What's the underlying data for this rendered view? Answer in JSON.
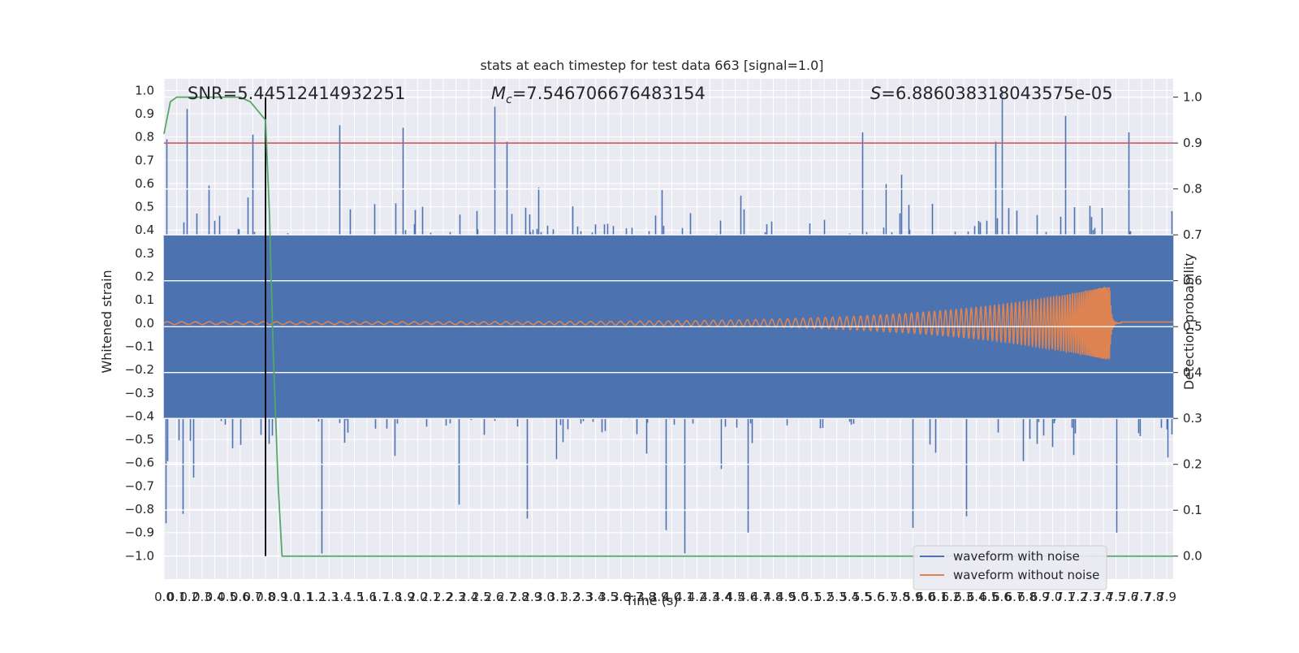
{
  "chart_data": {
    "type": "line",
    "title": "stats at each timestep for test data 663 [signal=1.0]",
    "xlabel": "Time (s)",
    "ylabel_left": "Whitened strain",
    "ylabel_right": "Detection probability",
    "xlim": [
      0.0,
      7.95
    ],
    "ylim_left": [
      -1.1,
      1.05
    ],
    "ylim_right": [
      -0.05,
      1.04
    ],
    "x_tick_step": 0.1,
    "y_left_ticks": [
      -1.0,
      -0.9,
      -0.8,
      -0.7,
      -0.6,
      -0.5,
      -0.4,
      -0.3,
      -0.2,
      -0.1,
      0.0,
      0.1,
      0.2,
      0.3,
      0.4,
      0.5,
      0.6,
      0.7,
      0.8,
      0.9,
      1.0
    ],
    "y_right_ticks": [
      0.0,
      0.1,
      0.2,
      0.3,
      0.4,
      0.5,
      0.6,
      0.7,
      0.8,
      0.9,
      1.0
    ],
    "grid": true,
    "legend_position": "lower-right",
    "annotations": {
      "snr": "SNR=5.44512414932251",
      "mc_symbol": "M",
      "mc_sub": "c",
      "mc_value": "=7.546706676483154",
      "s_symbol": "S",
      "s_value": "=6.886038318043575e-05"
    },
    "noisy_waveform": {
      "name": "waveform with noise",
      "color": "#4c72b0",
      "duration_s": 7.95,
      "envelope_pos": 0.38,
      "envelope_neg": -0.41,
      "max": 1.0,
      "min": -0.99,
      "peaks": [
        {
          "t": 0.02,
          "v": 0.79
        },
        {
          "t": 0.18,
          "v": 0.92
        },
        {
          "t": 0.7,
          "v": 0.81
        },
        {
          "t": 1.38,
          "v": 0.85
        },
        {
          "t": 1.88,
          "v": 0.84
        },
        {
          "t": 2.6,
          "v": 0.93
        },
        {
          "t": 2.7,
          "v": 0.78
        },
        {
          "t": 5.5,
          "v": 0.82
        },
        {
          "t": 6.55,
          "v": 0.78
        },
        {
          "t": 6.6,
          "v": 1.0
        },
        {
          "t": 7.1,
          "v": 0.89
        },
        {
          "t": 7.6,
          "v": 0.82
        },
        {
          "t": 0.01,
          "v": -0.86
        },
        {
          "t": 0.15,
          "v": -0.82
        },
        {
          "t": 1.24,
          "v": -0.99
        },
        {
          "t": 2.32,
          "v": -0.78
        },
        {
          "t": 2.86,
          "v": -0.84
        },
        {
          "t": 3.95,
          "v": -0.89
        },
        {
          "t": 4.1,
          "v": -0.99
        },
        {
          "t": 4.6,
          "v": -0.9
        },
        {
          "t": 5.9,
          "v": -0.88
        },
        {
          "t": 6.32,
          "v": -0.83
        },
        {
          "t": 7.5,
          "v": -0.9
        }
      ]
    },
    "clean_waveform": {
      "name": "waveform without noise",
      "color": "#dd8452",
      "start_amplitude": 0.006,
      "end_amplitude": 0.16,
      "merger_time_s": 7.45,
      "ringdown_offset": 0.005
    },
    "detection_probability": {
      "name": "detection probability",
      "color": "#55a868",
      "x": [
        0.0,
        0.05,
        0.1,
        0.2,
        0.6,
        0.68,
        0.74,
        0.8,
        0.83,
        0.86,
        0.9,
        0.93,
        1.0,
        7.95
      ],
      "y": [
        0.92,
        0.99,
        1.0,
        1.0,
        1.0,
        0.99,
        0.97,
        0.95,
        0.75,
        0.45,
        0.15,
        0.0,
        0.0,
        0.0
      ]
    },
    "threshold": {
      "color": "#c44e52",
      "value_right_axis": 0.9
    },
    "marker_line": {
      "color": "#000000",
      "t": 0.8,
      "y_from_right_axis": 0.0,
      "y_to_right_axis": 1.0
    }
  },
  "legend": {
    "items": [
      {
        "label": "waveform with noise",
        "color": "#4c72b0"
      },
      {
        "label": "waveform without noise",
        "color": "#dd8452"
      }
    ]
  }
}
